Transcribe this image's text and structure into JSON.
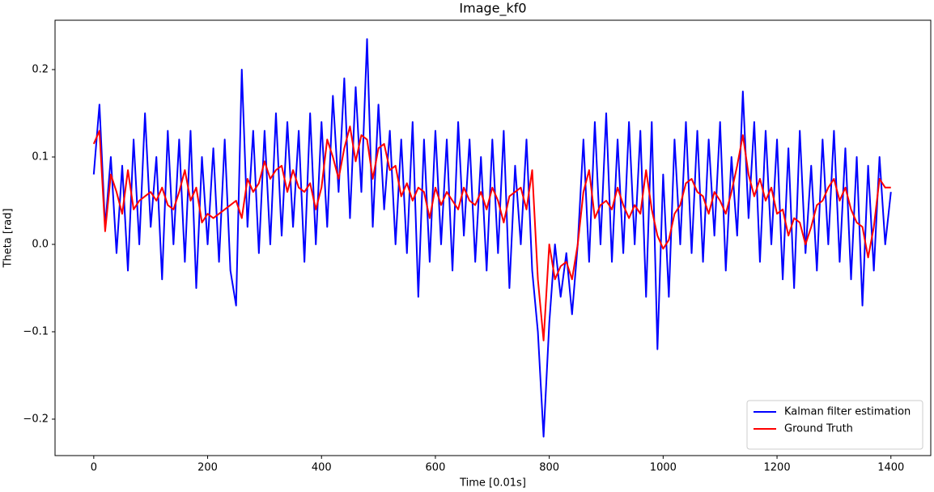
{
  "chart_data": {
    "type": "line",
    "title": "Image_kf0",
    "x_label": "Time [0.01s]",
    "y_label": "Theta [rad]",
    "x": [
      0,
      10,
      20,
      30,
      40,
      50,
      60,
      70,
      80,
      90,
      100,
      110,
      120,
      130,
      140,
      150,
      160,
      170,
      180,
      190,
      200,
      210,
      220,
      230,
      240,
      250,
      260,
      270,
      280,
      290,
      300,
      310,
      320,
      330,
      340,
      350,
      360,
      370,
      380,
      390,
      400,
      410,
      420,
      430,
      440,
      450,
      460,
      470,
      480,
      490,
      500,
      510,
      520,
      530,
      540,
      550,
      560,
      570,
      580,
      590,
      600,
      610,
      620,
      630,
      640,
      650,
      660,
      670,
      680,
      690,
      700,
      710,
      720,
      730,
      740,
      750,
      760,
      770,
      780,
      790,
      800,
      810,
      820,
      830,
      840,
      850,
      860,
      870,
      880,
      890,
      900,
      910,
      920,
      930,
      940,
      950,
      960,
      970,
      980,
      990,
      1000,
      1010,
      1020,
      1030,
      1040,
      1050,
      1060,
      1070,
      1080,
      1090,
      1100,
      1110,
      1120,
      1130,
      1140,
      1150,
      1160,
      1170,
      1180,
      1190,
      1200,
      1210,
      1220,
      1230,
      1240,
      1250,
      1260,
      1270,
      1280,
      1290,
      1300,
      1310,
      1320,
      1330,
      1340,
      1350,
      1360,
      1370,
      1380,
      1390,
      1400
    ],
    "series": [
      {
        "name": "Kalman filter estimation",
        "color": "#0000ff",
        "values": [
          0.08,
          0.16,
          0.02,
          0.1,
          -0.01,
          0.09,
          -0.03,
          0.12,
          0.0,
          0.15,
          0.02,
          0.1,
          -0.04,
          0.13,
          0.0,
          0.12,
          -0.02,
          0.13,
          -0.05,
          0.1,
          0.0,
          0.11,
          -0.02,
          0.12,
          -0.03,
          -0.07,
          0.2,
          0.02,
          0.13,
          -0.01,
          0.13,
          0.0,
          0.15,
          0.01,
          0.14,
          0.02,
          0.13,
          -0.02,
          0.15,
          0.0,
          0.14,
          0.02,
          0.17,
          0.06,
          0.19,
          0.03,
          0.18,
          0.06,
          0.235,
          0.02,
          0.16,
          0.04,
          0.13,
          0.0,
          0.12,
          -0.01,
          0.14,
          -0.06,
          0.12,
          -0.02,
          0.13,
          0.0,
          0.12,
          -0.03,
          0.14,
          0.01,
          0.12,
          -0.02,
          0.1,
          -0.03,
          0.12,
          -0.01,
          0.13,
          -0.05,
          0.09,
          0.0,
          0.12,
          -0.03,
          -0.1,
          -0.22,
          -0.09,
          0.0,
          -0.06,
          -0.01,
          -0.08,
          0.0,
          0.12,
          -0.02,
          0.14,
          0.0,
          0.15,
          -0.02,
          0.12,
          -0.01,
          0.14,
          0.0,
          0.13,
          -0.06,
          0.14,
          -0.12,
          0.08,
          -0.06,
          0.12,
          0.0,
          0.14,
          -0.01,
          0.13,
          -0.02,
          0.12,
          0.01,
          0.14,
          -0.03,
          0.1,
          0.01,
          0.175,
          0.03,
          0.14,
          -0.02,
          0.13,
          0.0,
          0.12,
          -0.04,
          0.11,
          -0.05,
          0.13,
          -0.01,
          0.09,
          -0.03,
          0.12,
          0.0,
          0.13,
          -0.02,
          0.11,
          -0.04,
          0.1,
          -0.07,
          0.09,
          -0.03,
          0.1,
          0.0,
          0.06
        ]
      },
      {
        "name": "Ground Truth",
        "color": "#ff0000",
        "values": [
          0.115,
          0.13,
          0.015,
          0.08,
          0.06,
          0.035,
          0.085,
          0.04,
          0.05,
          0.055,
          0.06,
          0.05,
          0.065,
          0.045,
          0.04,
          0.06,
          0.085,
          0.05,
          0.065,
          0.025,
          0.035,
          0.03,
          0.035,
          0.04,
          0.045,
          0.05,
          0.03,
          0.075,
          0.06,
          0.07,
          0.095,
          0.075,
          0.085,
          0.09,
          0.06,
          0.085,
          0.065,
          0.06,
          0.07,
          0.04,
          0.065,
          0.12,
          0.1,
          0.075,
          0.11,
          0.135,
          0.095,
          0.125,
          0.12,
          0.075,
          0.11,
          0.115,
          0.085,
          0.09,
          0.055,
          0.07,
          0.05,
          0.065,
          0.06,
          0.03,
          0.065,
          0.045,
          0.06,
          0.05,
          0.04,
          0.065,
          0.05,
          0.045,
          0.06,
          0.04,
          0.065,
          0.05,
          0.025,
          0.055,
          0.06,
          0.065,
          0.04,
          0.085,
          -0.04,
          -0.11,
          0.0,
          -0.04,
          -0.025,
          -0.02,
          -0.04,
          0.0,
          0.06,
          0.085,
          0.03,
          0.045,
          0.05,
          0.04,
          0.065,
          0.045,
          0.03,
          0.045,
          0.035,
          0.085,
          0.04,
          0.01,
          -0.005,
          0.005,
          0.035,
          0.045,
          0.07,
          0.075,
          0.06,
          0.055,
          0.035,
          0.06,
          0.05,
          0.035,
          0.06,
          0.09,
          0.125,
          0.08,
          0.055,
          0.075,
          0.05,
          0.065,
          0.035,
          0.04,
          0.01,
          0.03,
          0.025,
          0.0,
          0.02,
          0.045,
          0.05,
          0.065,
          0.075,
          0.05,
          0.065,
          0.04,
          0.025,
          0.02,
          -0.015,
          0.02,
          0.075,
          0.065,
          0.065
        ]
      }
    ],
    "xlim": [
      -68,
      1470
    ],
    "xticks": [
      0,
      200,
      400,
      600,
      800,
      1000,
      1200,
      1400
    ],
    "ylim": [
      -0.2417,
      0.2565
    ],
    "yticks": [
      {
        "value": -0.2,
        "label": "−0.2"
      },
      {
        "value": -0.1,
        "label": "−0.1"
      },
      {
        "value": 0,
        "label": "0.0"
      },
      0.1,
      0.2
    ],
    "legend": "lower right"
  }
}
